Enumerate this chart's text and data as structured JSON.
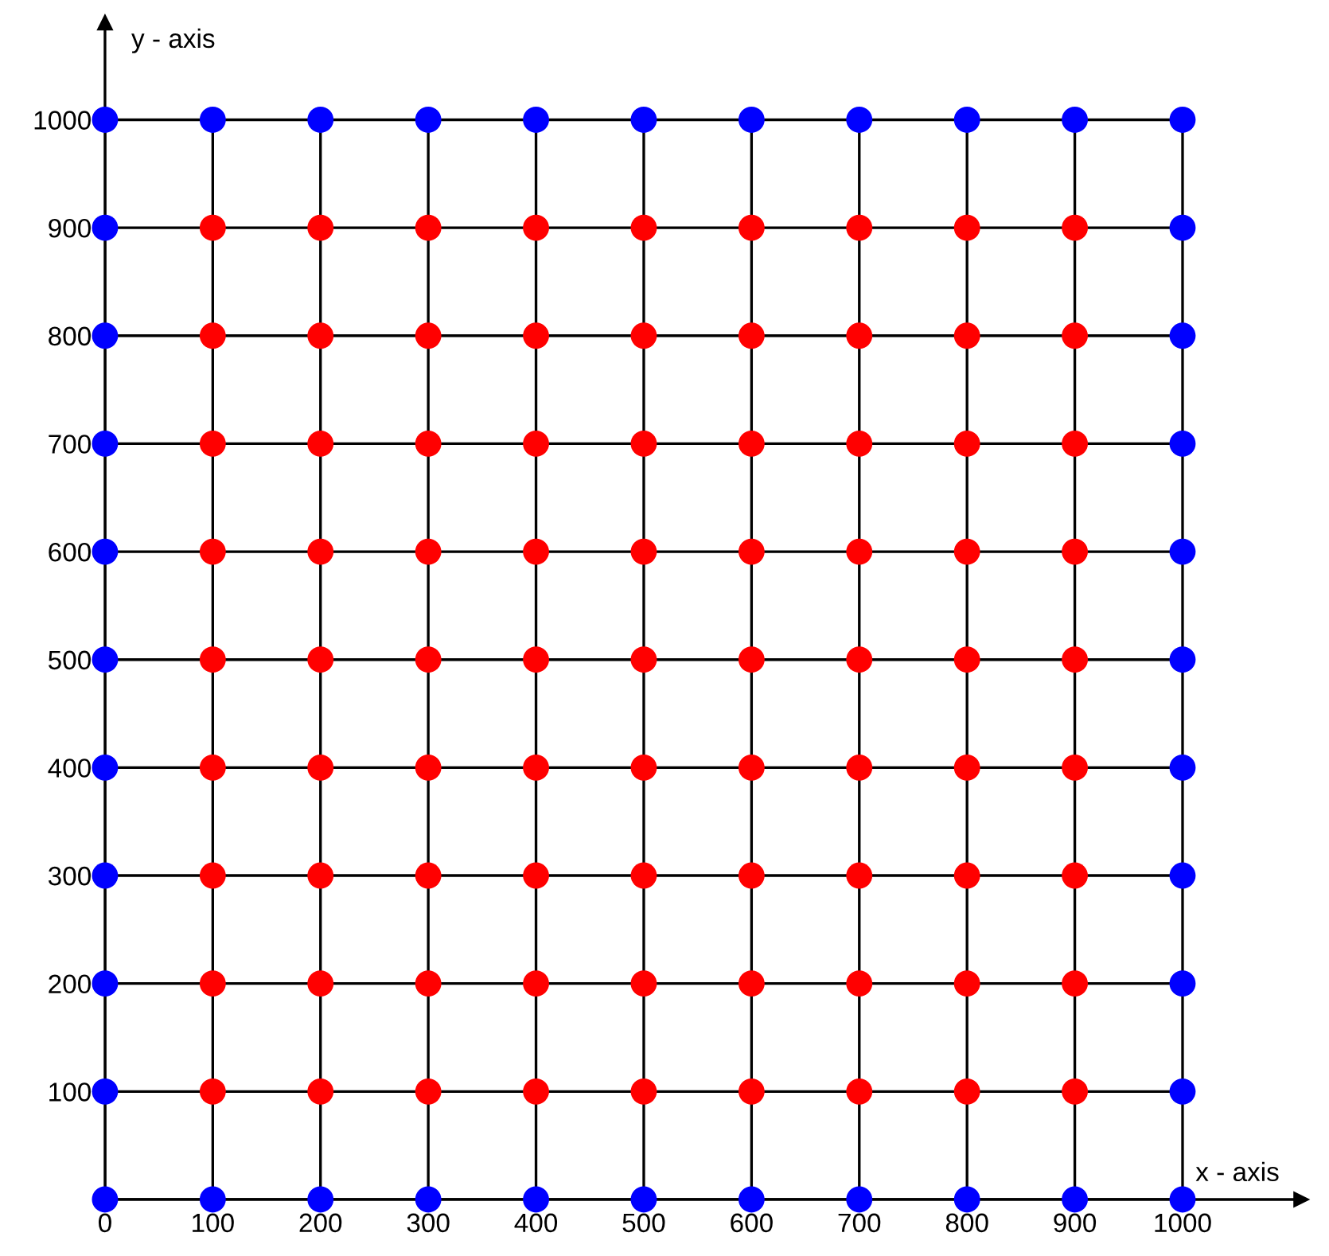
{
  "chart_data": {
    "type": "scatter",
    "xlabel": "x - axis",
    "ylabel": "y - axis",
    "xlim": [
      0,
      1110
    ],
    "ylim": [
      0,
      1090
    ],
    "xticks": [
      0,
      100,
      200,
      300,
      400,
      500,
      600,
      700,
      800,
      900,
      1000
    ],
    "yticks": [
      {
        "value": 0,
        "label": null
      },
      100,
      200,
      300,
      400,
      500,
      600,
      700,
      800,
      900,
      1000
    ],
    "grid": true,
    "marker": "circle",
    "series": [
      {
        "color": "#0000ff",
        "x": [
          0,
          100,
          200,
          300,
          400,
          500,
          600,
          700,
          800,
          900,
          1000,
          0,
          100,
          200,
          300,
          400,
          500,
          600,
          700,
          800,
          900,
          1000,
          0,
          0,
          0,
          0,
          0,
          0,
          0,
          0,
          0,
          1000,
          1000,
          1000,
          1000,
          1000,
          1000,
          1000,
          1000,
          1000
        ],
        "values": [
          0,
          0,
          0,
          0,
          0,
          0,
          0,
          0,
          0,
          0,
          0,
          1000,
          1000,
          1000,
          1000,
          1000,
          1000,
          1000,
          1000,
          1000,
          1000,
          1000,
          100,
          200,
          300,
          400,
          500,
          600,
          700,
          800,
          900,
          100,
          200,
          300,
          400,
          500,
          600,
          700,
          800,
          900
        ]
      },
      {
        "color": "#ff0000",
        "x": [
          100,
          200,
          300,
          400,
          500,
          600,
          700,
          800,
          900,
          100,
          200,
          300,
          400,
          500,
          600,
          700,
          800,
          900,
          100,
          200,
          300,
          400,
          500,
          600,
          700,
          800,
          900,
          100,
          200,
          300,
          400,
          500,
          600,
          700,
          800,
          900,
          100,
          200,
          300,
          400,
          500,
          600,
          700,
          800,
          900,
          100,
          200,
          300,
          400,
          500,
          600,
          700,
          800,
          900,
          100,
          200,
          300,
          400,
          500,
          600,
          700,
          800,
          900,
          100,
          200,
          300,
          400,
          500,
          600,
          700,
          800,
          900,
          100,
          200,
          300,
          400,
          500,
          600,
          700,
          800,
          900
        ],
        "values": [
          100,
          100,
          100,
          100,
          100,
          100,
          100,
          100,
          100,
          200,
          200,
          200,
          200,
          200,
          200,
          200,
          200,
          200,
          300,
          300,
          300,
          300,
          300,
          300,
          300,
          300,
          300,
          400,
          400,
          400,
          400,
          400,
          400,
          400,
          400,
          400,
          500,
          500,
          500,
          500,
          500,
          500,
          500,
          500,
          500,
          600,
          600,
          600,
          600,
          600,
          600,
          600,
          600,
          600,
          700,
          700,
          700,
          700,
          700,
          700,
          700,
          700,
          700,
          800,
          800,
          800,
          800,
          800,
          800,
          800,
          800,
          800,
          900,
          900,
          900,
          900,
          900,
          900,
          900,
          900,
          900
        ]
      }
    ]
  }
}
